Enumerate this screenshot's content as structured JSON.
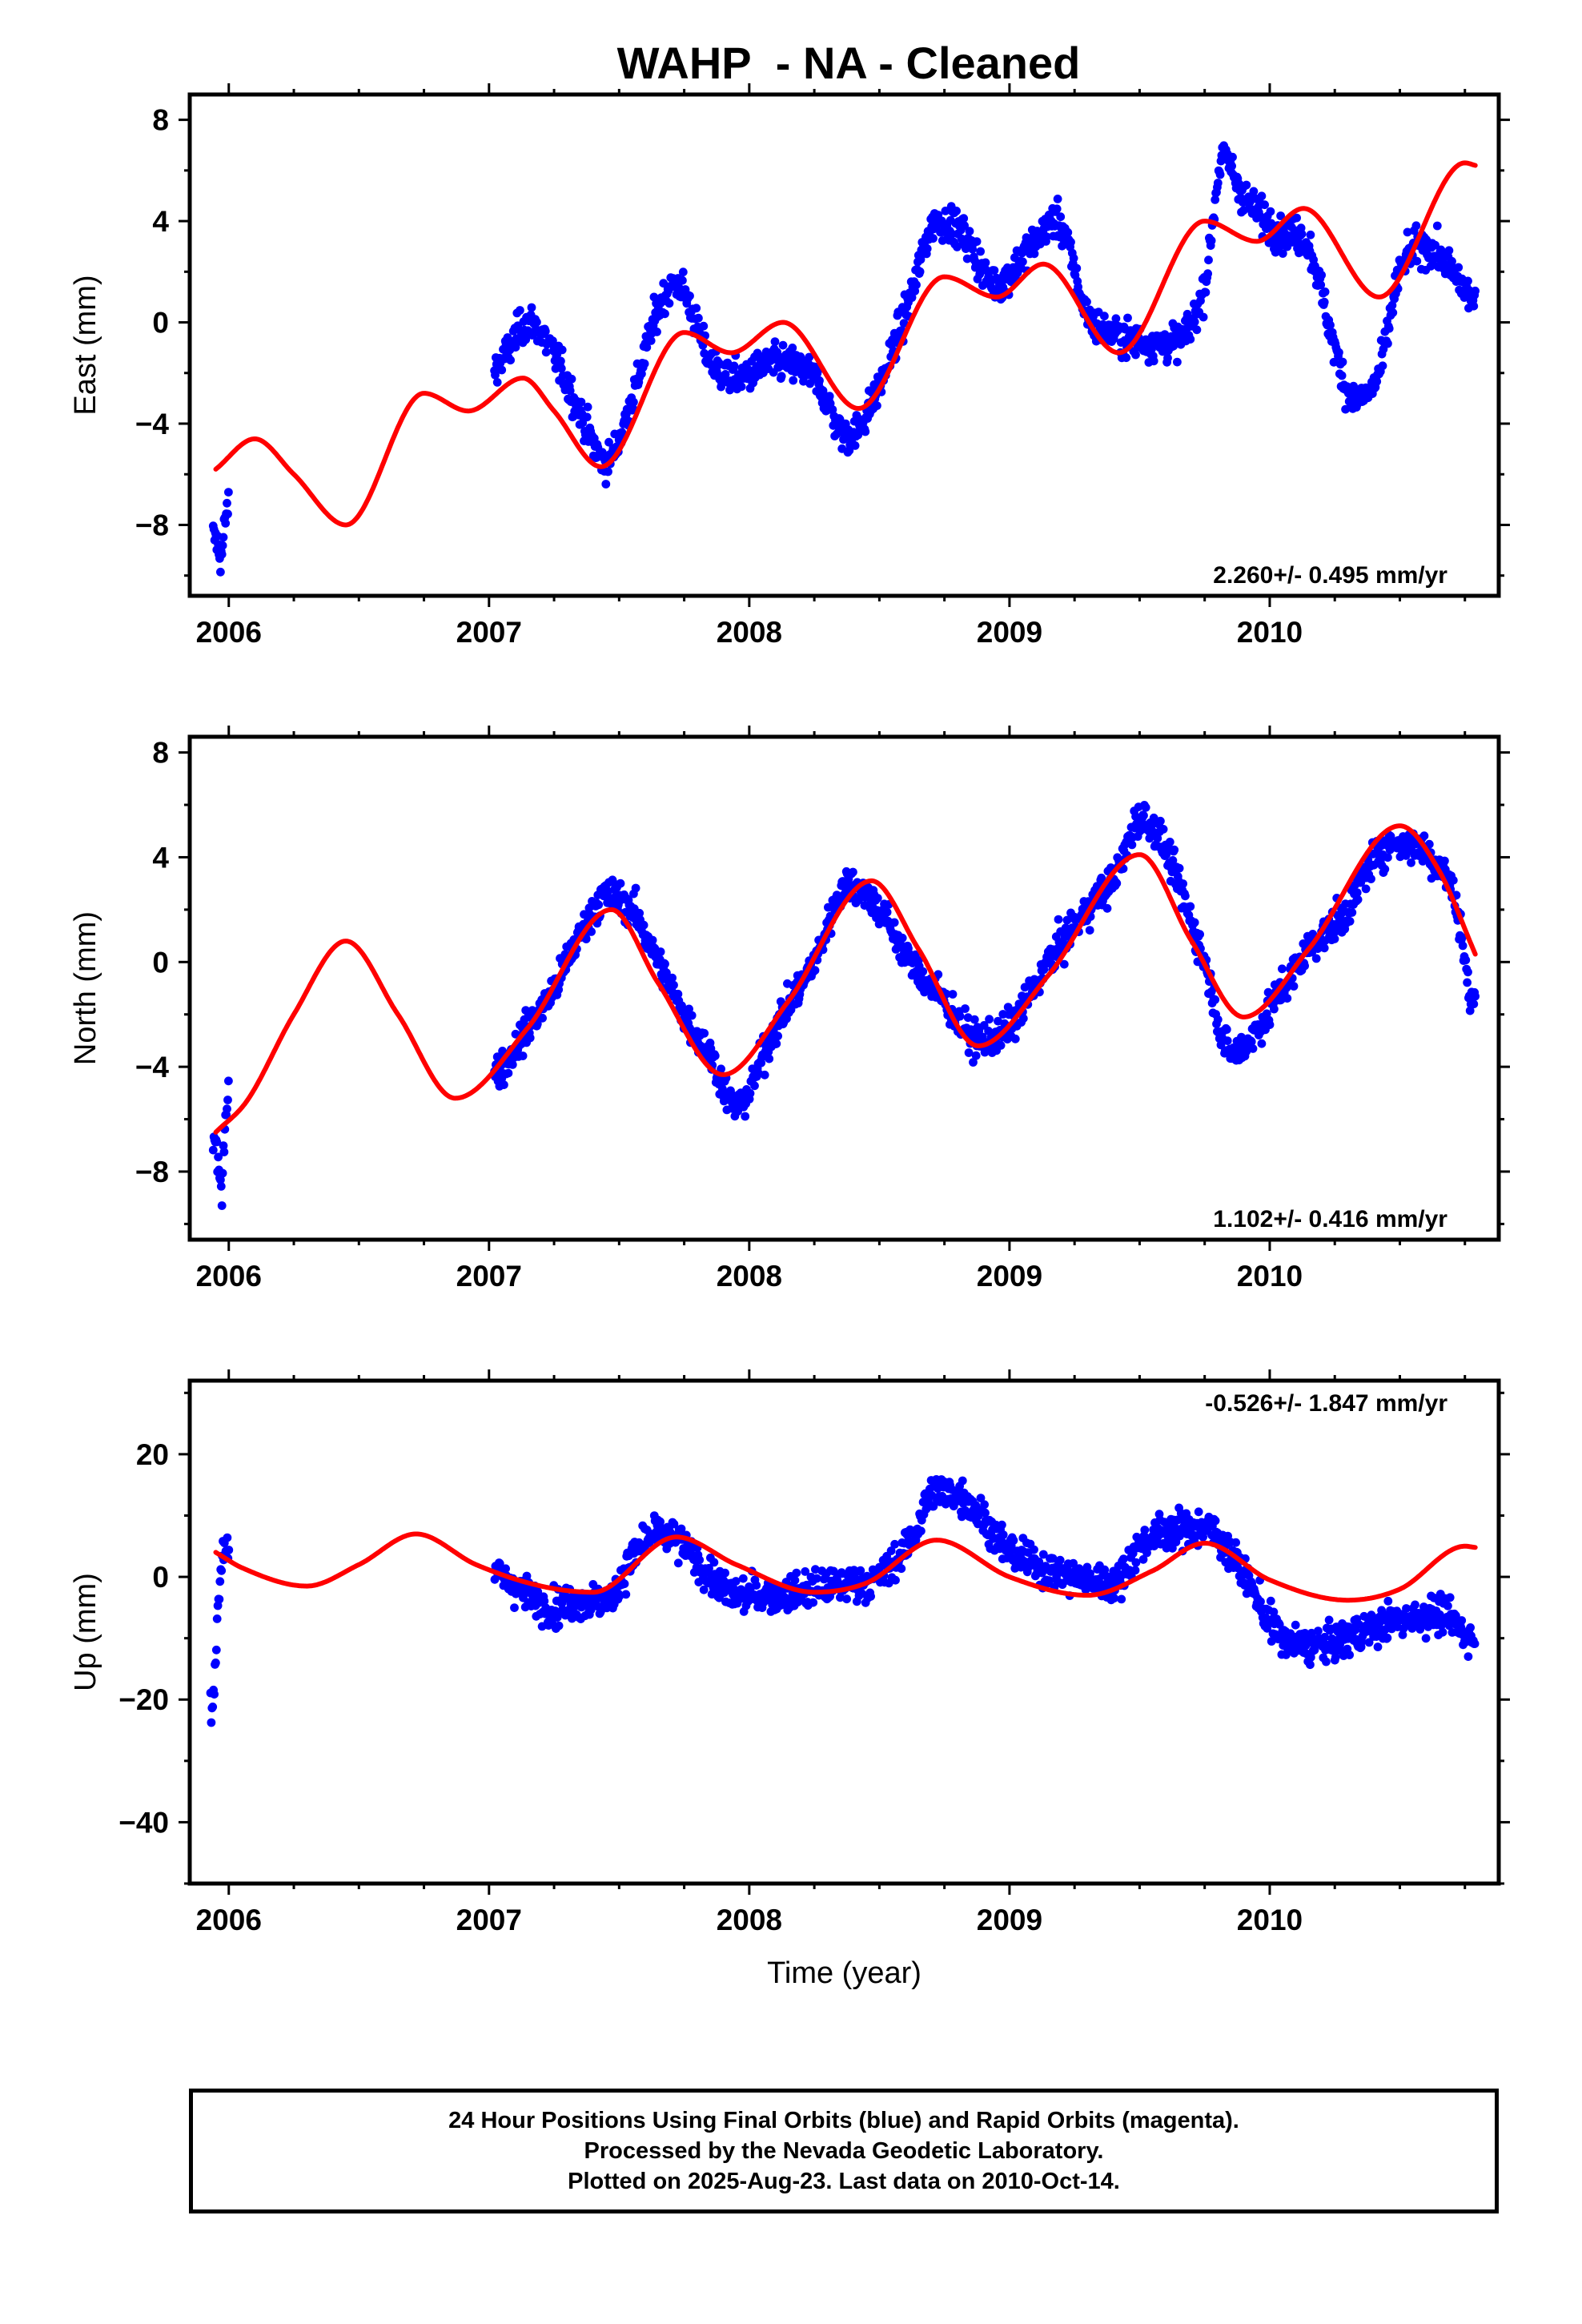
{
  "title": "WAHP  - NA - Cleaned",
  "footer": {
    "line1": "24 Hour Positions Using Final Orbits (blue) and Rapid Orbits (magenta).",
    "line2": "Processed by the Nevada Geodetic Laboratory.",
    "line3": "Plotted on 2025-Aug-23. Last data on 2010-Oct-14."
  },
  "colors": {
    "data_points": "#0000ff",
    "model_curve": "#ff0000",
    "axes": "#000000"
  },
  "chart_data": [
    {
      "type": "scatter",
      "component": "east",
      "ylabel": "East (mm)",
      "xlabel": "",
      "xlim": [
        2005.85,
        2010.88
      ],
      "ylim": [
        -10.8,
        9.0
      ],
      "xticks": [
        2006,
        2007,
        2008,
        2009,
        2010
      ],
      "yticks": [
        8,
        4,
        0,
        -4,
        -8
      ],
      "rate_label": "2.260+/- 0.495 mm/yr",
      "rate_position": "bottom-right",
      "gaps": [
        [
          2006.0,
          2007.02
        ]
      ],
      "data_end": 2010.79,
      "point_clusters": [
        {
          "t": 2005.95,
          "v": -8.5
        },
        {
          "t": 2005.97,
          "v": -9.2
        },
        {
          "t": 2005.99,
          "v": -7.6
        },
        {
          "t": 2007.05,
          "v": -1.5
        },
        {
          "t": 2007.15,
          "v": 0.0
        },
        {
          "t": 2007.25,
          "v": -1.3
        },
        {
          "t": 2007.35,
          "v": -3.6
        },
        {
          "t": 2007.45,
          "v": -5.5
        },
        {
          "t": 2007.55,
          "v": -3.0
        },
        {
          "t": 2007.65,
          "v": 0.5
        },
        {
          "t": 2007.72,
          "v": 1.5
        },
        {
          "t": 2007.85,
          "v": -1.5
        },
        {
          "t": 2007.95,
          "v": -2.2
        },
        {
          "t": 2008.1,
          "v": -1.6
        },
        {
          "t": 2008.25,
          "v": -2.2
        },
        {
          "t": 2008.38,
          "v": -4.5
        },
        {
          "t": 2008.5,
          "v": -2.5
        },
        {
          "t": 2008.62,
          "v": 1.0
        },
        {
          "t": 2008.72,
          "v": 4.0
        },
        {
          "t": 2008.82,
          "v": 3.5
        },
        {
          "t": 2008.95,
          "v": 1.5
        },
        {
          "t": 2009.08,
          "v": 3.0
        },
        {
          "t": 2009.18,
          "v": 4.0
        },
        {
          "t": 2009.3,
          "v": 0.3
        },
        {
          "t": 2009.42,
          "v": -0.5
        },
        {
          "t": 2009.55,
          "v": -0.8
        },
        {
          "t": 2009.75,
          "v": 1.5
        },
        {
          "t": 2009.82,
          "v": 6.5
        },
        {
          "t": 2009.9,
          "v": 5.0
        },
        {
          "t": 2010.05,
          "v": 3.5
        },
        {
          "t": 2010.15,
          "v": 3.0
        },
        {
          "t": 2010.25,
          "v": -1.0
        },
        {
          "t": 2010.32,
          "v": -3.0
        },
        {
          "t": 2010.42,
          "v": -2.0
        },
        {
          "t": 2010.5,
          "v": 2.0
        },
        {
          "t": 2010.6,
          "v": 3.0
        },
        {
          "t": 2010.7,
          "v": 2.0
        },
        {
          "t": 2010.77,
          "v": 1.0
        }
      ],
      "model_curve": [
        {
          "t": 2005.95,
          "v": -5.8
        },
        {
          "t": 2006.1,
          "v": -4.6
        },
        {
          "t": 2006.25,
          "v": -6.0
        },
        {
          "t": 2006.45,
          "v": -8.0
        },
        {
          "t": 2006.75,
          "v": -2.8
        },
        {
          "t": 2006.92,
          "v": -3.5
        },
        {
          "t": 2007.13,
          "v": -2.2
        },
        {
          "t": 2007.25,
          "v": -3.5
        },
        {
          "t": 2007.43,
          "v": -5.7
        },
        {
          "t": 2007.75,
          "v": -0.4
        },
        {
          "t": 2007.93,
          "v": -1.2
        },
        {
          "t": 2008.13,
          "v": 0.0
        },
        {
          "t": 2008.42,
          "v": -3.4
        },
        {
          "t": 2008.75,
          "v": 1.8
        },
        {
          "t": 2008.95,
          "v": 1.0
        },
        {
          "t": 2009.13,
          "v": 2.3
        },
        {
          "t": 2009.42,
          "v": -1.2
        },
        {
          "t": 2009.75,
          "v": 4.0
        },
        {
          "t": 2009.95,
          "v": 3.2
        },
        {
          "t": 2010.13,
          "v": 4.5
        },
        {
          "t": 2010.42,
          "v": 1.0
        },
        {
          "t": 2010.75,
          "v": 6.3
        },
        {
          "t": 2010.79,
          "v": 6.2
        }
      ]
    },
    {
      "type": "scatter",
      "component": "north",
      "ylabel": "North (mm)",
      "xlabel": "",
      "xlim": [
        2005.85,
        2010.88
      ],
      "ylim": [
        -10.6,
        8.6
      ],
      "xticks": [
        2006,
        2007,
        2008,
        2009,
        2010
      ],
      "yticks": [
        8,
        4,
        0,
        -4,
        -8
      ],
      "rate_label": "1.102+/- 0.416 mm/yr",
      "rate_position": "bottom-right",
      "gaps": [
        [
          2006.0,
          2007.02
        ]
      ],
      "data_end": 2010.79,
      "point_clusters": [
        {
          "t": 2005.95,
          "v": -7.0
        },
        {
          "t": 2005.97,
          "v": -8.5
        },
        {
          "t": 2005.99,
          "v": -5.5
        },
        {
          "t": 2007.05,
          "v": -4.0
        },
        {
          "t": 2007.15,
          "v": -2.5
        },
        {
          "t": 2007.25,
          "v": -1.0
        },
        {
          "t": 2007.35,
          "v": 1.0
        },
        {
          "t": 2007.45,
          "v": 2.5
        },
        {
          "t": 2007.55,
          "v": 2.0
        },
        {
          "t": 2007.65,
          "v": 0.0
        },
        {
          "t": 2007.75,
          "v": -2.0
        },
        {
          "t": 2007.85,
          "v": -3.5
        },
        {
          "t": 2007.95,
          "v": -5.5
        },
        {
          "t": 2008.1,
          "v": -2.5
        },
        {
          "t": 2008.25,
          "v": 0.0
        },
        {
          "t": 2008.38,
          "v": 3.0
        },
        {
          "t": 2008.5,
          "v": 2.0
        },
        {
          "t": 2008.62,
          "v": 0.0
        },
        {
          "t": 2008.75,
          "v": -1.5
        },
        {
          "t": 2008.88,
          "v": -3.0
        },
        {
          "t": 2009.0,
          "v": -2.5
        },
        {
          "t": 2009.15,
          "v": 0.0
        },
        {
          "t": 2009.3,
          "v": 2.0
        },
        {
          "t": 2009.42,
          "v": 3.5
        },
        {
          "t": 2009.5,
          "v": 5.5
        },
        {
          "t": 2009.75,
          "v": 0.0
        },
        {
          "t": 2009.85,
          "v": -3.5
        },
        {
          "t": 2010.05,
          "v": -1.0
        },
        {
          "t": 2010.15,
          "v": 0.5
        },
        {
          "t": 2010.3,
          "v": 2.0
        },
        {
          "t": 2010.4,
          "v": 4.0
        },
        {
          "t": 2010.5,
          "v": 4.5
        },
        {
          "t": 2010.62,
          "v": 4.0
        },
        {
          "t": 2010.72,
          "v": 2.0
        },
        {
          "t": 2010.77,
          "v": -1.5
        }
      ],
      "model_curve": [
        {
          "t": 2005.95,
          "v": -6.5
        },
        {
          "t": 2006.07,
          "v": -5.3
        },
        {
          "t": 2006.25,
          "v": -2.0
        },
        {
          "t": 2006.45,
          "v": 0.8
        },
        {
          "t": 2006.65,
          "v": -2.0
        },
        {
          "t": 2006.87,
          "v": -5.2
        },
        {
          "t": 2007.15,
          "v": -2.5
        },
        {
          "t": 2007.47,
          "v": 2.0
        },
        {
          "t": 2007.65,
          "v": -0.8
        },
        {
          "t": 2007.9,
          "v": -4.3
        },
        {
          "t": 2008.15,
          "v": -1.5
        },
        {
          "t": 2008.47,
          "v": 3.1
        },
        {
          "t": 2008.65,
          "v": 0.5
        },
        {
          "t": 2008.88,
          "v": -3.2
        },
        {
          "t": 2009.15,
          "v": -0.5
        },
        {
          "t": 2009.5,
          "v": 4.1
        },
        {
          "t": 2009.7,
          "v": 0.8
        },
        {
          "t": 2009.9,
          "v": -2.1
        },
        {
          "t": 2010.15,
          "v": 0.5
        },
        {
          "t": 2010.5,
          "v": 5.2
        },
        {
          "t": 2010.65,
          "v": 3.5
        },
        {
          "t": 2010.79,
          "v": 0.3
        }
      ]
    },
    {
      "type": "scatter",
      "component": "up",
      "ylabel": "Up (mm)",
      "xlabel": "Time (year)",
      "xlim": [
        2005.85,
        2010.88
      ],
      "ylim": [
        -50.0,
        32.0
      ],
      "xticks": [
        2006,
        2007,
        2008,
        2009,
        2010
      ],
      "yticks": [
        20,
        0,
        -20,
        -40
      ],
      "rate_label": "-0.526+/- 1.847 mm/yr",
      "rate_position": "top-right",
      "gaps": [
        [
          2006.0,
          2007.02
        ]
      ],
      "data_end": 2010.79,
      "point_clusters": [
        {
          "t": 2005.94,
          "v": -20.0
        },
        {
          "t": 2005.96,
          "v": -5.0
        },
        {
          "t": 2005.98,
          "v": 5.0
        },
        {
          "t": 2007.05,
          "v": 0.0
        },
        {
          "t": 2007.15,
          "v": -3.0
        },
        {
          "t": 2007.25,
          "v": -5.0
        },
        {
          "t": 2007.35,
          "v": -4.0
        },
        {
          "t": 2007.45,
          "v": -4.0
        },
        {
          "t": 2007.55,
          "v": 3.0
        },
        {
          "t": 2007.65,
          "v": 7.0
        },
        {
          "t": 2007.75,
          "v": 5.0
        },
        {
          "t": 2007.85,
          "v": 0.0
        },
        {
          "t": 2007.95,
          "v": -3.0
        },
        {
          "t": 2008.1,
          "v": -3.0
        },
        {
          "t": 2008.25,
          "v": -2.0
        },
        {
          "t": 2008.38,
          "v": -1.0
        },
        {
          "t": 2008.5,
          "v": 0.0
        },
        {
          "t": 2008.62,
          "v": 6.0
        },
        {
          "t": 2008.72,
          "v": 14.0
        },
        {
          "t": 2008.85,
          "v": 12.0
        },
        {
          "t": 2008.98,
          "v": 5.0
        },
        {
          "t": 2009.1,
          "v": 2.0
        },
        {
          "t": 2009.25,
          "v": 0.0
        },
        {
          "t": 2009.4,
          "v": -1.0
        },
        {
          "t": 2009.5,
          "v": 5.0
        },
        {
          "t": 2009.75,
          "v": 8.0
        },
        {
          "t": 2009.85,
          "v": 4.0
        },
        {
          "t": 2010.05,
          "v": -10.0
        },
        {
          "t": 2010.2,
          "v": -11.0
        },
        {
          "t": 2010.35,
          "v": -9.0
        },
        {
          "t": 2010.5,
          "v": -7.0
        },
        {
          "t": 2010.65,
          "v": -6.0
        },
        {
          "t": 2010.77,
          "v": -10.0
        }
      ],
      "model_curve": [
        {
          "t": 2005.95,
          "v": 4.0
        },
        {
          "t": 2006.05,
          "v": 1.5
        },
        {
          "t": 2006.3,
          "v": -1.5
        },
        {
          "t": 2006.5,
          "v": 2.0
        },
        {
          "t": 2006.72,
          "v": 7.0
        },
        {
          "t": 2006.95,
          "v": 2.0
        },
        {
          "t": 2007.2,
          "v": -1.5
        },
        {
          "t": 2007.4,
          "v": -2.5
        },
        {
          "t": 2007.72,
          "v": 6.5
        },
        {
          "t": 2007.95,
          "v": 2.0
        },
        {
          "t": 2008.25,
          "v": -2.5
        },
        {
          "t": 2008.45,
          "v": -1.0
        },
        {
          "t": 2008.72,
          "v": 6.0
        },
        {
          "t": 2009.0,
          "v": 0.0
        },
        {
          "t": 2009.3,
          "v": -3.0
        },
        {
          "t": 2009.55,
          "v": 1.0
        },
        {
          "t": 2009.75,
          "v": 5.5
        },
        {
          "t": 2010.0,
          "v": -0.5
        },
        {
          "t": 2010.3,
          "v": -3.8
        },
        {
          "t": 2010.5,
          "v": -2.0
        },
        {
          "t": 2010.75,
          "v": 5.0
        },
        {
          "t": 2010.79,
          "v": 4.8
        }
      ]
    }
  ]
}
